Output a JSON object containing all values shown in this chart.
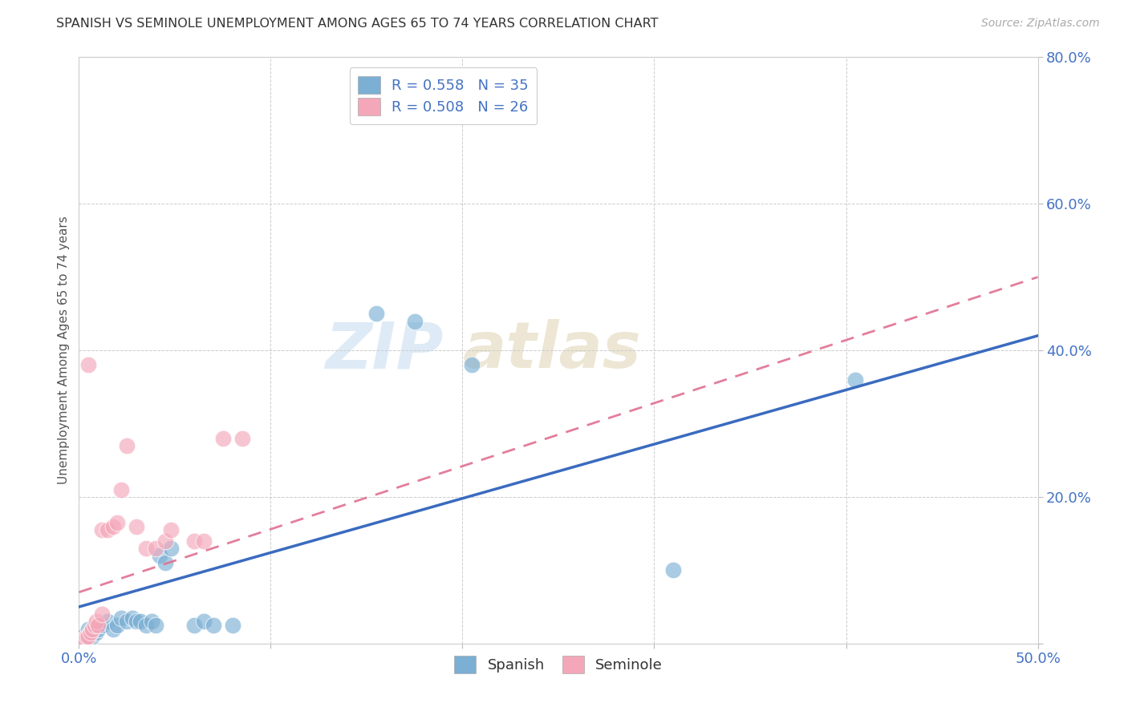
{
  "title": "SPANISH VS SEMINOLE UNEMPLOYMENT AMONG AGES 65 TO 74 YEARS CORRELATION CHART",
  "source": "Source: ZipAtlas.com",
  "ylabel": "Unemployment Among Ages 65 to 74 years",
  "xlim": [
    0.0,
    0.5
  ],
  "ylim": [
    0.0,
    0.8
  ],
  "xticks": [
    0.0,
    0.1,
    0.2,
    0.3,
    0.4,
    0.5
  ],
  "yticks": [
    0.0,
    0.2,
    0.4,
    0.6,
    0.8
  ],
  "xtick_labels": [
    "0.0%",
    "",
    "",
    "",
    "",
    "50.0%"
  ],
  "ytick_labels": [
    "",
    "20.0%",
    "40.0%",
    "60.0%",
    "80.0%"
  ],
  "spanish_color": "#7bafd4",
  "seminole_color": "#f4a7b9",
  "spanish_line_color": "#3a6bbf",
  "seminole_line_color": "#e07090",
  "spanish_R": 0.558,
  "spanish_N": 35,
  "seminole_R": 0.508,
  "seminole_N": 26,
  "spanish_points": [
    [
      0.001,
      0.005
    ],
    [
      0.002,
      0.01
    ],
    [
      0.003,
      0.005
    ],
    [
      0.004,
      0.008
    ],
    [
      0.005,
      0.01
    ],
    [
      0.005,
      0.02
    ],
    [
      0.006,
      0.015
    ],
    [
      0.007,
      0.01
    ],
    [
      0.008,
      0.02
    ],
    [
      0.009,
      0.015
    ],
    [
      0.01,
      0.02
    ],
    [
      0.012,
      0.025
    ],
    [
      0.015,
      0.03
    ],
    [
      0.018,
      0.02
    ],
    [
      0.02,
      0.025
    ],
    [
      0.022,
      0.035
    ],
    [
      0.025,
      0.03
    ],
    [
      0.028,
      0.035
    ],
    [
      0.03,
      0.03
    ],
    [
      0.032,
      0.03
    ],
    [
      0.035,
      0.025
    ],
    [
      0.038,
      0.03
    ],
    [
      0.04,
      0.025
    ],
    [
      0.042,
      0.12
    ],
    [
      0.045,
      0.11
    ],
    [
      0.048,
      0.13
    ],
    [
      0.06,
      0.025
    ],
    [
      0.065,
      0.03
    ],
    [
      0.07,
      0.025
    ],
    [
      0.08,
      0.025
    ],
    [
      0.155,
      0.45
    ],
    [
      0.175,
      0.44
    ],
    [
      0.205,
      0.38
    ],
    [
      0.31,
      0.1
    ],
    [
      0.405,
      0.36
    ]
  ],
  "seminole_points": [
    [
      0.002,
      0.005
    ],
    [
      0.003,
      0.005
    ],
    [
      0.004,
      0.01
    ],
    [
      0.005,
      0.01
    ],
    [
      0.006,
      0.015
    ],
    [
      0.007,
      0.02
    ],
    [
      0.008,
      0.025
    ],
    [
      0.009,
      0.03
    ],
    [
      0.01,
      0.025
    ],
    [
      0.012,
      0.04
    ],
    [
      0.012,
      0.155
    ],
    [
      0.015,
      0.155
    ],
    [
      0.018,
      0.16
    ],
    [
      0.02,
      0.165
    ],
    [
      0.022,
      0.21
    ],
    [
      0.025,
      0.27
    ],
    [
      0.03,
      0.16
    ],
    [
      0.035,
      0.13
    ],
    [
      0.04,
      0.13
    ],
    [
      0.045,
      0.14
    ],
    [
      0.048,
      0.155
    ],
    [
      0.06,
      0.14
    ],
    [
      0.065,
      0.14
    ],
    [
      0.075,
      0.28
    ],
    [
      0.085,
      0.28
    ],
    [
      0.005,
      0.38
    ]
  ],
  "background_color": "#ffffff",
  "grid_color": "#cccccc",
  "title_color": "#333333",
  "axis_label_color": "#555555",
  "tick_color": "#4472c4"
}
